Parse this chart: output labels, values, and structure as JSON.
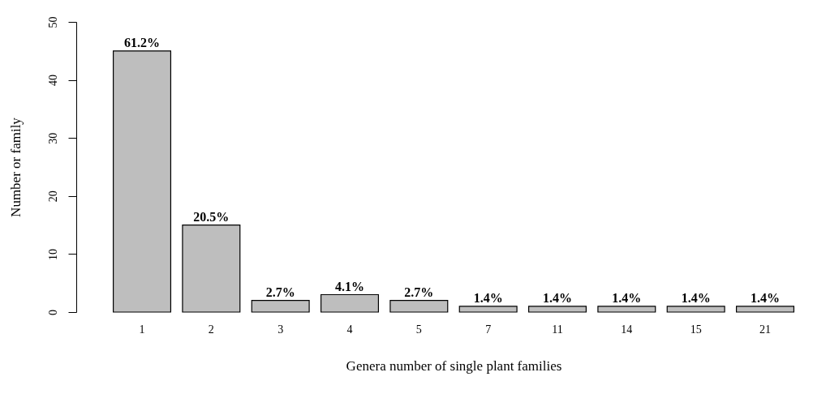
{
  "chart_data": {
    "type": "bar",
    "xlabel": "Genera number of single plant families",
    "ylabel": "Number or family",
    "categories": [
      "1",
      "2",
      "3",
      "4",
      "5",
      "7",
      "11",
      "14",
      "15",
      "21"
    ],
    "values": [
      45,
      15,
      2,
      3,
      2,
      1,
      1,
      1,
      1,
      1
    ],
    "annotations": [
      {
        "text": "61.2%",
        "x": "1",
        "y": 45
      },
      {
        "text": "20.5%",
        "x": "2",
        "y": 15
      },
      {
        "text": "2.7%",
        "x": "3",
        "y": 2
      },
      {
        "text": "4.1%",
        "x": "4",
        "y": 3
      },
      {
        "text": "2.7%",
        "x": "5",
        "y": 2
      },
      {
        "text": "1.4%",
        "x": "7",
        "y": 1
      },
      {
        "text": "1.4%",
        "x": "11",
        "y": 1
      },
      {
        "text": "1.4%",
        "x": "14",
        "y": 1
      },
      {
        "text": "1.4%",
        "x": "15",
        "y": 1
      },
      {
        "text": "1.4%",
        "x": "21",
        "y": 1
      }
    ],
    "color": "#bebebe",
    "ylim": [
      0,
      50
    ],
    "yticks": [
      0,
      10,
      20,
      30,
      40,
      50
    ],
    "grid": false
  }
}
